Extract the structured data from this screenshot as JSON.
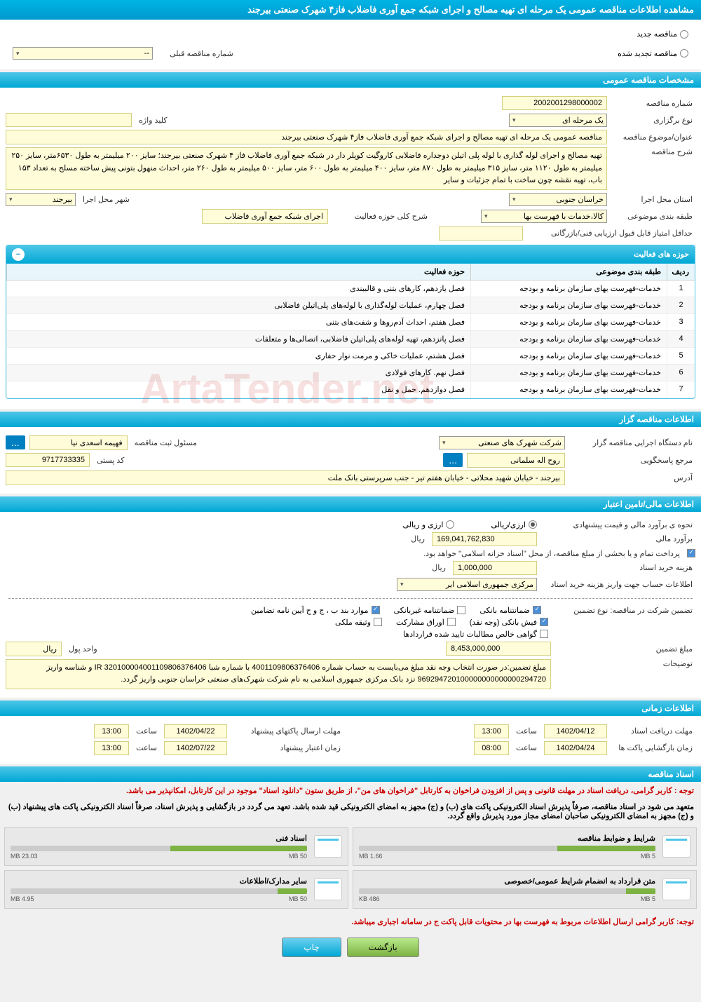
{
  "page_title": "مشاهده اطلاعات مناقصه عمومی یک مرحله ای تهیه مصالح و اجرای شبکه جمع آوری فاضلاب فاز۴ شهرک صنعتی بیرجند",
  "top_radios": {
    "new_tender": "مناقصه جدید",
    "renewed_tender": "مناقصه تجدید شده",
    "prev_number_label": "شماره مناقصه قبلی",
    "prev_number_value": "--"
  },
  "sections": {
    "general": "مشخصات مناقصه عمومی",
    "activity_fields": "حوزه های فعالیت",
    "tenderer": "اطلاعات مناقصه گزار",
    "financial": "اطلاعات مالی/تامین اعتبار",
    "timing": "اطلاعات زمانی",
    "documents": "اسناد مناقصه"
  },
  "general": {
    "tender_no_label": "شماره مناقصه",
    "tender_no": "2002001298000002",
    "type_label": "نوع برگزاری",
    "type": "یک مرحله ای",
    "keyword_label": "کلید واژه",
    "keyword": "",
    "subject_label": "عنوان/موضوع مناقصه",
    "subject": "مناقصه عمومی یک مرحله ای تهیه مصالح و اجرای شبکه جمع آوری فاضلاب فاز۴ شهرک صنعتی بیرجند",
    "desc_label": "شرح مناقصه",
    "desc": "تهیه مصالح و اجرای لوله گذاری با لوله پلی اتیلن دوجداره فاضلابی کاروگیت کوپلر دار در شبکه جمع آوری فاضلاب فاز ۴ شهرک صنعتی بیرجند؛ سایز ۲۰۰ میلیمتر به طول ۶۵۳۰متر، سایز ۲۵۰ میلیمتر به طول ۱۱۲۰ متر، سایز ۳۱۵ میلیمتر به طول ۸۷۰ متر، سایز ۴۰۰ میلیمتر به طول ۶۰۰ متر، سایز ۵۰۰ میلیمتر به طول ۲۶۰ متر، احداث منهول بتونی پیش ساخته مسلح به تعداد ۱۵۳ باب، تهیه نقشه چون ساخت با تمام جزئیات و سایر",
    "province_label": "استان محل اجرا",
    "province": "خراسان جنوبی",
    "city_label": "شهر محل اجرا",
    "city": "بیرجند",
    "category_label": "طبقه بندی موضوعی",
    "category": "کالا،خدمات با فهرست بها",
    "activity_desc_label": "شرح کلی حوزه فعالیت",
    "activity_desc": "اجرای شبکه جمع آوری فاضلاب",
    "min_score_label": "حداقل امتیاز قابل قبول ارزیابی فنی/بازرگانی",
    "min_score": ""
  },
  "activity_table": {
    "col_idx": "ردیف",
    "col_category": "طبقه بندی موضوعی",
    "col_field": "حوزه فعالیت",
    "rows": [
      {
        "idx": "1",
        "cat": "خدمات-فهرست بهای سازمان برنامه و بودجه",
        "field": "فصل یازدهم، کارهای بتنی و قالببندی"
      },
      {
        "idx": "2",
        "cat": "خدمات-فهرست بهای سازمان برنامه و بودجه",
        "field": "فصل چهارم، عملیات لوله‌گذاری با لوله‌های پلی‌اتیلن فاضلابی"
      },
      {
        "idx": "3",
        "cat": "خدمات-فهرست بهای سازمان برنامه و بودجه",
        "field": "فصل هفتم، احداث آدم‌روها و شفت‌های بتنی"
      },
      {
        "idx": "4",
        "cat": "خدمات-فهرست بهای سازمان برنامه و بودجه",
        "field": "فصل پانزدهم، تهیه لوله‌های پلی‌اتیلن فاضلابی، اتصالی‌ها و متعلقات"
      },
      {
        "idx": "5",
        "cat": "خدمات-فهرست بهای سازمان برنامه و بودجه",
        "field": "فصل هشتم، عملیات خاکی و مرمت نوار حفاری"
      },
      {
        "idx": "6",
        "cat": "خدمات-فهرست بهای سازمان برنامه و بودجه",
        "field": "فصل نهم. کارهای فولادی"
      },
      {
        "idx": "7",
        "cat": "خدمات-فهرست بهای سازمان برنامه و بودجه",
        "field": "فصل دوازدهم. حمل و نقل"
      }
    ]
  },
  "tenderer": {
    "org_label": "نام دستگاه اجرایی مناقصه گزار",
    "org": "شرکت شهرک های صنعتی",
    "reg_officer_label": "مسئول ثبت مناقصه",
    "reg_officer": "فهیمه اسعدی نیا",
    "contact_label": "مرجع پاسخگویی",
    "contact": "روح اله سلمانی",
    "postal_label": "کد پستی",
    "postal": "9717733335",
    "address_label": "آدرس",
    "address": "بیرجند - خیابان شهید محلاتی - خیابان هفتم تیر - جنب سرپرستی بانک ملت"
  },
  "financial": {
    "estimate_method_label": "نحوه ی برآورد مالی و قیمت پیشنهادی",
    "opt_arzi_riyali": "ارزی/ریالی",
    "opt_arzi": "ارزی و ریالی",
    "estimate_label": "برآورد مالی",
    "estimate": "169,041,762,830",
    "unit_rial": "ریال",
    "payment_note": "پرداخت تمام و یا بخشی از مبلغ مناقصه، از محل \"اسناد خزانه اسلامی\" خواهد بود.",
    "doc_fee_label": "هزینه خرید اسناد",
    "doc_fee": "1,000,000",
    "bank_info_label": "اطلاعات حساب جهت واریز هزینه خرید اسناد",
    "bank_info": "مرکزی جمهوری اسلامی ایر",
    "guarantee_label": "تضمین شرکت در مناقصه:   نوع تضمین",
    "chk_bank_guarantee": "ضمانتنامه بانکی",
    "chk_nonbank_guarantee": "ضمانتنامه غیربانکی",
    "chk_items_bjv": "موارد بند ب ، ج و ح آیین نامه تضامین",
    "chk_bank_receipt": "فیش بانکی (وجه نقد)",
    "chk_securities": "اوراق مشارکت",
    "chk_property": "وثیقه ملکی",
    "chk_receivables": "گواهی خالص مطالبات تایید شده قراردادها",
    "guarantee_amount_label": "مبلغ تضمین",
    "guarantee_amount": "8,453,000,000",
    "money_unit_label": "واحد پول",
    "money_unit": "ریال",
    "notes_label": "توضیحات",
    "notes": "مبلغ تضمین:در صورت انتخاب وجه نقد مبلغ می‌بایست به حساب شماره 4001109806376406 با شماره شبا IR 320100004001109806376406 و شناسه واریز 969294720100000000000000294720 نزد بانک مرکزی جمهوری اسلامی به نام شرکت شهرک‌های صنعتی خراسان جنوبی واریز گردد."
  },
  "timing": {
    "doc_deadline_label": "مهلت دریافت اسناد",
    "doc_deadline_date": "1402/04/12",
    "doc_deadline_time": "13:00",
    "time_label": "ساعت",
    "proposal_deadline_label": "مهلت ارسال پاکتهای پیشنهاد",
    "proposal_deadline_date": "1402/04/22",
    "proposal_deadline_time": "13:00",
    "opening_label": "زمان بازگشایی پاکت ها",
    "opening_date": "1402/04/24",
    "opening_time": "08:00",
    "validity_label": "زمان اعتبار پیشنهاد",
    "validity_date": "1402/07/22",
    "validity_time": "13:00"
  },
  "notes": {
    "red1": "توجه : کاربر گرامی، دریافت اسناد در مهلت قانونی و پس از افزودن فراخوان به کارتابل \"فراخوان های من\"، از طریق ستون \"دانلود اسناد\" موجود در این کارتابل، امکانپذیر می باشد.",
    "black1": "متعهد می شود در اسناد مناقصه، صرفاً پذیرش اسناد الکترونیکی پاکت های (ب) و (ج) مجهز به امضای الکترونیکی قید شده باشد. تعهد می گردد در بازگشایی و پذیرش اسناد، صرفاً اسناد الکترونیکی پاکت های پیشنهاد (ب) و (ج) مجهز به امضای الکترونیکی صاحبان امضای مجاز مورد پذیرش واقع گردد.",
    "red2": "توجه: کاربر گرامی ارسال اطلاعات مربوط به فهرست بها در محتویات قابل پاکت ج در سامانه اجباری میباشد."
  },
  "files": [
    {
      "title": "شرایط و ضوابط مناقصه",
      "size": "1.66 MB",
      "max": "5 MB",
      "pct": 33
    },
    {
      "title": "اسناد فنی",
      "size": "23.03 MB",
      "max": "50 MB",
      "pct": 46
    },
    {
      "title": "متن قرارداد به انضمام شرایط عمومی/خصوصی",
      "size": "486 KB",
      "max": "5 MB",
      "pct": 10
    },
    {
      "title": "سایر مدارک/اطلاعات",
      "size": "4.95 MB",
      "max": "50 MB",
      "pct": 10
    }
  ],
  "buttons": {
    "return": "بازگشت",
    "print": "چاپ"
  },
  "watermark": "ArtaTender.net"
}
